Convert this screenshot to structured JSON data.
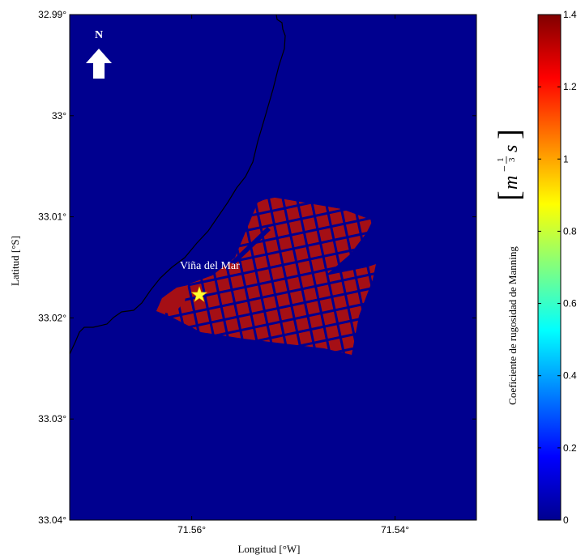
{
  "map": {
    "background_color": "#00008f",
    "urban_color": "#a50f15",
    "coastline_color": "#000000",
    "x_axis": {
      "label": "Longitud [°W]",
      "ticks": [
        "71.56°",
        "71.54°"
      ]
    },
    "y_axis": {
      "label": "Latitud [°S]",
      "ticks": [
        "32.99°",
        "33°",
        "33.01°",
        "33.02°",
        "33.03°",
        "33.04°"
      ]
    },
    "place": {
      "name": "Viña del Mar",
      "marker_color": "#ffff33"
    },
    "north_arrow": {
      "label": "N"
    }
  },
  "colorbar": {
    "label": "Coeficiente de rugosidad de Manning",
    "unit": {
      "m": "m",
      "exp_num": "1",
      "exp_den": "3",
      "s": "s"
    },
    "ticks": [
      "0",
      "0.2",
      "0.4",
      "0.6",
      "0.8",
      "1",
      "1.2",
      "1.4"
    ],
    "range": [
      0,
      1.4
    ],
    "colormap": "jet",
    "colormap_stops": [
      "#00008f",
      "#0000ff",
      "#0080ff",
      "#00ffff",
      "#80ff80",
      "#ffff00",
      "#ff8000",
      "#ff0000",
      "#800000"
    ]
  },
  "chart_data": {
    "type": "heatmap",
    "title": "",
    "xlabel": "Longitud [°W]",
    "ylabel": "Latitud [°S]",
    "xlim": [
      71.572,
      71.532
    ],
    "ylim": [
      33.04,
      32.99
    ],
    "value_range": [
      0,
      1.4
    ],
    "categories": [
      {
        "name": "urban blocks (Viña del Mar)",
        "value": 1.4
      },
      {
        "name": "streets / open area",
        "value": 0
      }
    ]
  }
}
